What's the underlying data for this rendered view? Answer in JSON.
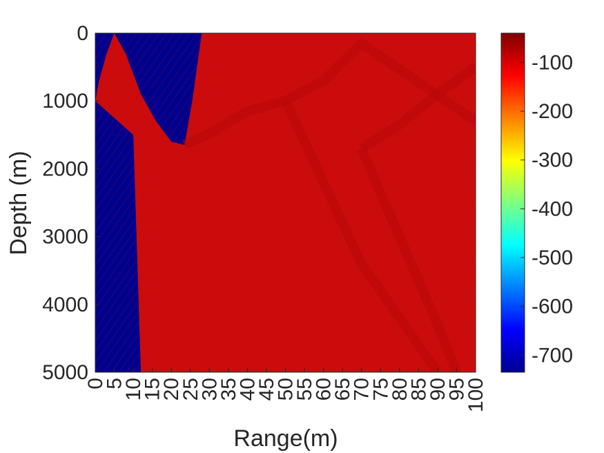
{
  "chart_data": {
    "type": "heatmap",
    "title": "",
    "xlabel": "Range(m)",
    "ylabel": "Depth (m)",
    "xlim": [
      0,
      100
    ],
    "ylim": [
      0,
      5000
    ],
    "y_reversed": true,
    "x_ticks": [
      "0",
      "5",
      "10",
      "15",
      "20",
      "25",
      "30",
      "35",
      "40",
      "45",
      "50",
      "55",
      "60",
      "65",
      "70",
      "75",
      "80",
      "85",
      "90",
      "95",
      "100"
    ],
    "x_tick_values": [
      0,
      5,
      10,
      15,
      20,
      25,
      30,
      35,
      40,
      45,
      50,
      55,
      60,
      65,
      70,
      75,
      80,
      85,
      90,
      95,
      100
    ],
    "y_ticks": [
      "0",
      "1000",
      "2000",
      "3000",
      "4000",
      "5000"
    ],
    "y_tick_values": [
      0,
      1000,
      2000,
      3000,
      4000,
      5000
    ],
    "colorbar": {
      "colormap": "jet",
      "clim": [
        -735,
        -40
      ],
      "ticks": [
        "-100",
        "-200",
        "-300",
        "-400",
        "-500",
        "-600",
        "-700"
      ],
      "tick_values": [
        -100,
        -200,
        -300,
        -400,
        -500,
        -600,
        -700
      ]
    },
    "field": {
      "background_value": -735,
      "field_value": -70,
      "shadow_zone_left_boundary": [
        [
          0,
          1000
        ],
        [
          1,
          700
        ],
        [
          3,
          300
        ],
        [
          5,
          0
        ],
        [
          10,
          1500
        ],
        [
          12,
          5000
        ]
      ],
      "shadow_zone_upper_boundary": [
        [
          5,
          0
        ],
        [
          8,
          300
        ],
        [
          12,
          900
        ],
        [
          16,
          1300
        ],
        [
          20,
          1600
        ],
        [
          23.5,
          1650
        ],
        [
          25.5,
          1000
        ],
        [
          28,
          0
        ]
      ],
      "ray_paths": [
        {
          "points": [
            [
              23.5,
              1650
            ],
            [
              30,
              1480
            ],
            [
              40,
              1150
            ],
            [
              50,
              1000
            ],
            [
              60,
              700
            ],
            [
              70,
              150
            ],
            [
              100,
              1300
            ]
          ]
        },
        {
          "points": [
            [
              50,
              1000
            ],
            [
              60,
              2200
            ],
            [
              70,
              3400
            ],
            [
              80,
              4200
            ],
            [
              90,
              5000
            ]
          ]
        },
        {
          "points": [
            [
              70,
              1700
            ],
            [
              80,
              1350
            ],
            [
              90,
              900
            ],
            [
              100,
              500
            ]
          ]
        },
        {
          "points": [
            [
              70,
              1700
            ],
            [
              80,
              3000
            ],
            [
              90,
              4300
            ],
            [
              95,
              5000
            ]
          ]
        }
      ]
    },
    "colors": {
      "field": "#cc0c0c",
      "shadow": "#00008f",
      "ray": "#b80808"
    }
  }
}
